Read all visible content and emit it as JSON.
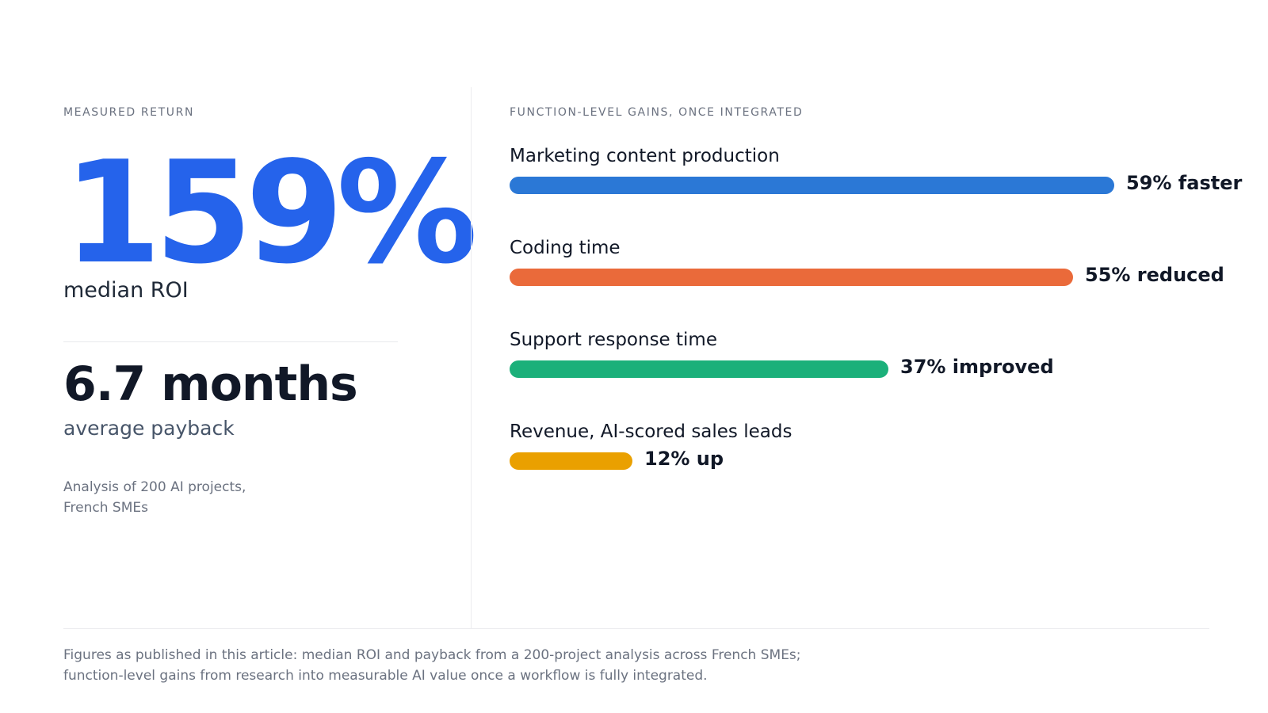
{
  "left": {
    "eyebrow": "MEASURED RETURN",
    "roi_value": "159%",
    "roi_label": "median ROI",
    "payback_value": "6.7 months",
    "payback_label": "average payback",
    "source_line1": "Analysis of 200 AI projects,",
    "source_line2": "French SMEs"
  },
  "right": {
    "eyebrow": "FUNCTION-LEVEL GAINS, ONCE INTEGRATED"
  },
  "chart_data": {
    "type": "bar",
    "orientation": "horizontal",
    "title": "FUNCTION-LEVEL GAINS, ONCE INTEGRATED",
    "unit": "%",
    "xlim": [
      0,
      59
    ],
    "grid": false,
    "categories": [
      "Marketing content production",
      "Coding time",
      "Support response time",
      "Revenue, AI-scored sales leads"
    ],
    "values": [
      59,
      55,
      37,
      12
    ],
    "data_labels": [
      "59% faster",
      "55% reduced",
      "37% improved",
      "12% up"
    ],
    "colors": [
      "#2b78d6",
      "#ea6a3a",
      "#1bb07a",
      "#eaa000"
    ]
  },
  "footer": {
    "line1": "Figures as published in this article: median ROI and payback from a 200-project analysis across French SMEs;",
    "line2": "function-level gains from research into measurable AI value once a workflow is fully integrated."
  }
}
